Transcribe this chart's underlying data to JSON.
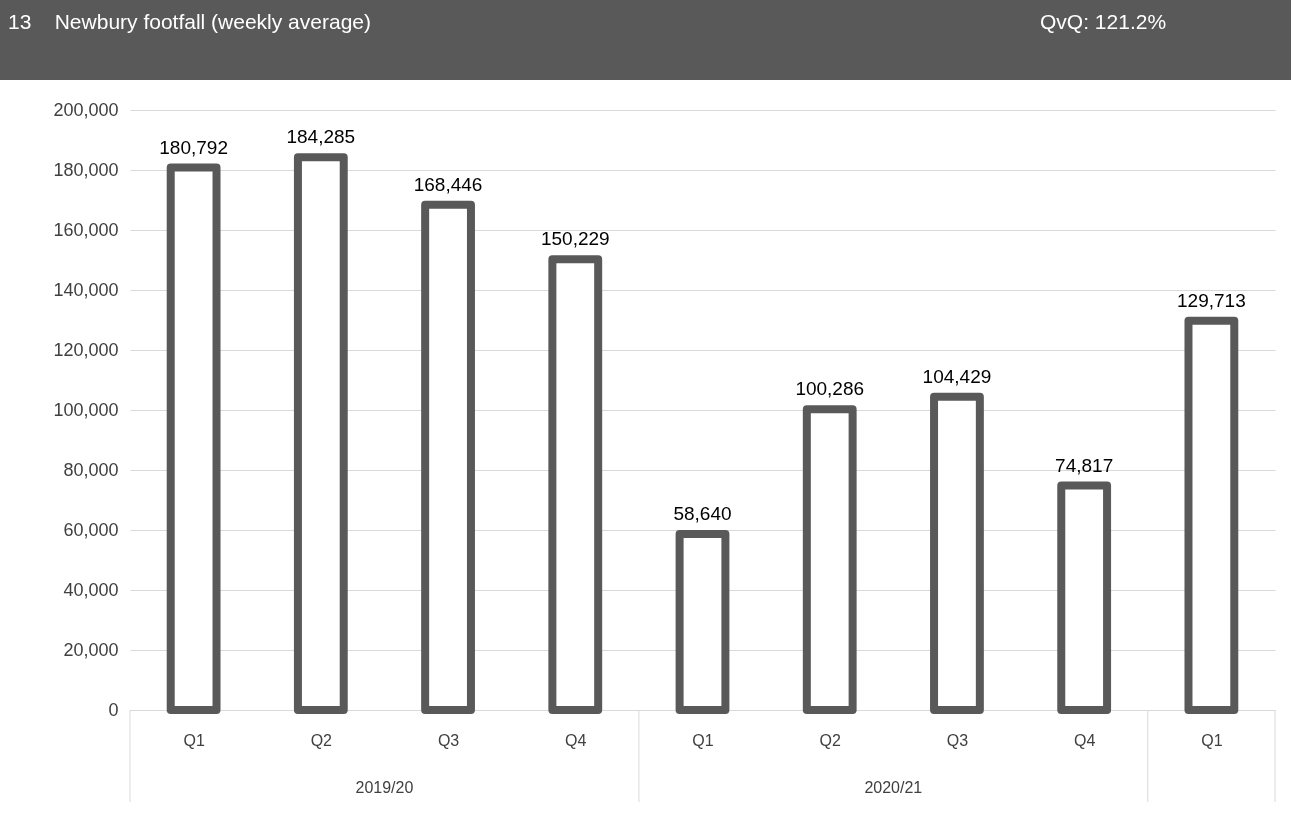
{
  "chart_data": {
    "type": "bar",
    "title": "13    Newbury footfall (weekly average)",
    "annotations": [
      "QvQ: 121.2%",
      "2019/20",
      "2020/21"
    ],
    "categories": [
      "Q1",
      "Q2",
      "Q3",
      "Q4",
      "Q1",
      "Q2",
      "Q3",
      "Q4",
      "Q1"
    ],
    "values": [
      180792,
      184285,
      168446,
      150229,
      58640,
      100286,
      104429,
      74817,
      129713
    ],
    "value_labels": [
      "180,792",
      "184,285",
      "168,446",
      "150,229",
      "58,640",
      "100,286",
      "104,429",
      "74,817",
      "129,713"
    ],
    "color": "#595959",
    "ylim": [
      0,
      200000
    ],
    "yticks": [
      0,
      {
        "value": 20000,
        "label": "20,000"
      },
      {
        "value": 40000,
        "label": "40,000"
      },
      {
        "value": 60000,
        "label": "60,000"
      },
      {
        "value": 80000,
        "label": "80,000"
      },
      {
        "value": 100000,
        "label": "100,000"
      },
      {
        "value": 120000,
        "label": "120,000"
      },
      {
        "value": 140000,
        "label": "140,000"
      },
      {
        "value": 160000,
        "label": "160,000"
      },
      {
        "value": 180000,
        "label": "180,000"
      },
      {
        "value": 200000,
        "label": "200,000"
      }
    ],
    "grid": "y"
  }
}
